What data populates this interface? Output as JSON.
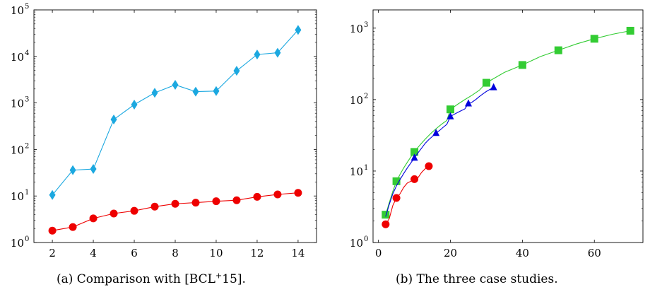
{
  "charts": [
    {
      "caption_prefix": "(a) Comparison with [BCL",
      "caption_sup": "+",
      "caption_suffix": "15]."
    },
    {
      "caption_prefix": "(b) The three case studies.",
      "caption_sup": "",
      "caption_suffix": ""
    }
  ],
  "chart_data": [
    {
      "type": "line",
      "title": "",
      "xlabel": "",
      "ylabel": "",
      "yscale": "log",
      "xlim": [
        1.1,
        14.9
      ],
      "ylim": [
        1,
        100000
      ],
      "x_ticks": [
        2,
        4,
        6,
        8,
        10,
        12,
        14
      ],
      "y_ticks": [
        {
          "value": 1,
          "label": "10",
          "exp": "0"
        },
        {
          "value": 10,
          "label": "10",
          "exp": "1"
        },
        {
          "value": 100,
          "label": "10",
          "exp": "2"
        },
        {
          "value": 1000,
          "label": "10",
          "exp": "3"
        },
        {
          "value": 10000,
          "label": "10",
          "exp": "4"
        },
        {
          "value": 100000,
          "label": "10",
          "exp": "5"
        }
      ],
      "grid": false,
      "series": [
        {
          "color": "#1ba8e0",
          "marker": "diamond",
          "x": [
            2,
            3,
            4,
            5,
            6,
            7,
            8,
            9,
            10,
            11,
            12,
            13,
            14
          ],
          "y": [
            10.5,
            36,
            38,
            440,
            920,
            1650,
            2450,
            1750,
            1800,
            4900,
            11000,
            12000,
            37000
          ]
        },
        {
          "color": "#ee0000",
          "marker": "circle",
          "x": [
            2,
            3,
            4,
            5,
            6,
            7,
            8,
            9,
            10,
            11,
            12,
            13,
            14
          ],
          "y": [
            1.8,
            2.15,
            3.3,
            4.2,
            4.8,
            5.9,
            6.8,
            7.2,
            7.7,
            8.1,
            9.6,
            10.8,
            11.7
          ]
        }
      ]
    },
    {
      "type": "line",
      "title": "",
      "xlabel": "",
      "ylabel": "",
      "yscale": "log",
      "xlim": [
        -1.5,
        73.5
      ],
      "ylim": [
        1,
        1800
      ],
      "x_ticks": [
        0,
        20,
        40,
        60
      ],
      "y_ticks": [
        {
          "value": 1,
          "label": "10",
          "exp": "0"
        },
        {
          "value": 10,
          "label": "10",
          "exp": "1"
        },
        {
          "value": 100,
          "label": "10",
          "exp": "2"
        },
        {
          "value": 1000,
          "label": "10",
          "exp": "3"
        }
      ],
      "grid": false,
      "series": [
        {
          "color": "#33cc33",
          "marker": "square",
          "marker_x": [
            2,
            5,
            10,
            20,
            30,
            40,
            50,
            60,
            70
          ],
          "marker_y": [
            2.45,
            7.2,
            18.5,
            73,
            172,
            305,
            490,
            710,
            920
          ],
          "line_x": [
            2,
            3,
            4,
            5,
            6,
            7,
            8,
            9,
            10,
            11,
            12,
            13,
            14,
            15,
            16,
            17,
            18,
            19,
            20,
            22,
            24,
            26,
            28,
            30,
            35,
            40,
            45,
            50,
            55,
            60,
            65,
            70
          ],
          "line_y": [
            2.45,
            3.6,
            5.2,
            7.2,
            9.0,
            11.0,
            13.2,
            15.8,
            18.5,
            21.5,
            24.6,
            28.0,
            31.5,
            35.2,
            39.0,
            43.0,
            47.0,
            51.0,
            73,
            86,
            100,
            115,
            135,
            172,
            240,
            305,
            400,
            490,
            600,
            710,
            820,
            920
          ]
        },
        {
          "color": "#0000dd",
          "marker": "triangle",
          "marker_x": [
            10,
            16,
            20,
            25,
            32
          ],
          "marker_y": [
            15.3,
            34,
            58,
            88,
            148
          ],
          "line_x": [
            2,
            3,
            4,
            5,
            6,
            7,
            8,
            9,
            10,
            11,
            12,
            13,
            14,
            15,
            16,
            17,
            18,
            19,
            20,
            21,
            22,
            23,
            24,
            25,
            26,
            27,
            28,
            29,
            30,
            31,
            32
          ],
          "line_y": [
            2.3,
            3.4,
            4.8,
            6.2,
            7.6,
            9.2,
            11.0,
            13.0,
            15.3,
            18.0,
            21.0,
            24.5,
            27.5,
            30.5,
            34,
            37,
            41,
            45,
            58,
            62,
            66,
            70,
            74,
            88,
            92,
            100,
            110,
            120,
            130,
            139,
            148
          ]
        },
        {
          "color": "#ee0000",
          "marker": "circle",
          "marker_x": [
            2,
            5,
            10,
            14
          ],
          "marker_y": [
            1.8,
            4.2,
            7.7,
            11.7
          ],
          "line_x": [
            2,
            3,
            4,
            5,
            6,
            7,
            8,
            9,
            10,
            11,
            12,
            13,
            14
          ],
          "line_y": [
            1.8,
            2.15,
            3.3,
            4.2,
            4.8,
            5.9,
            6.8,
            7.2,
            7.7,
            8.1,
            9.6,
            10.8,
            11.7
          ]
        }
      ]
    }
  ]
}
